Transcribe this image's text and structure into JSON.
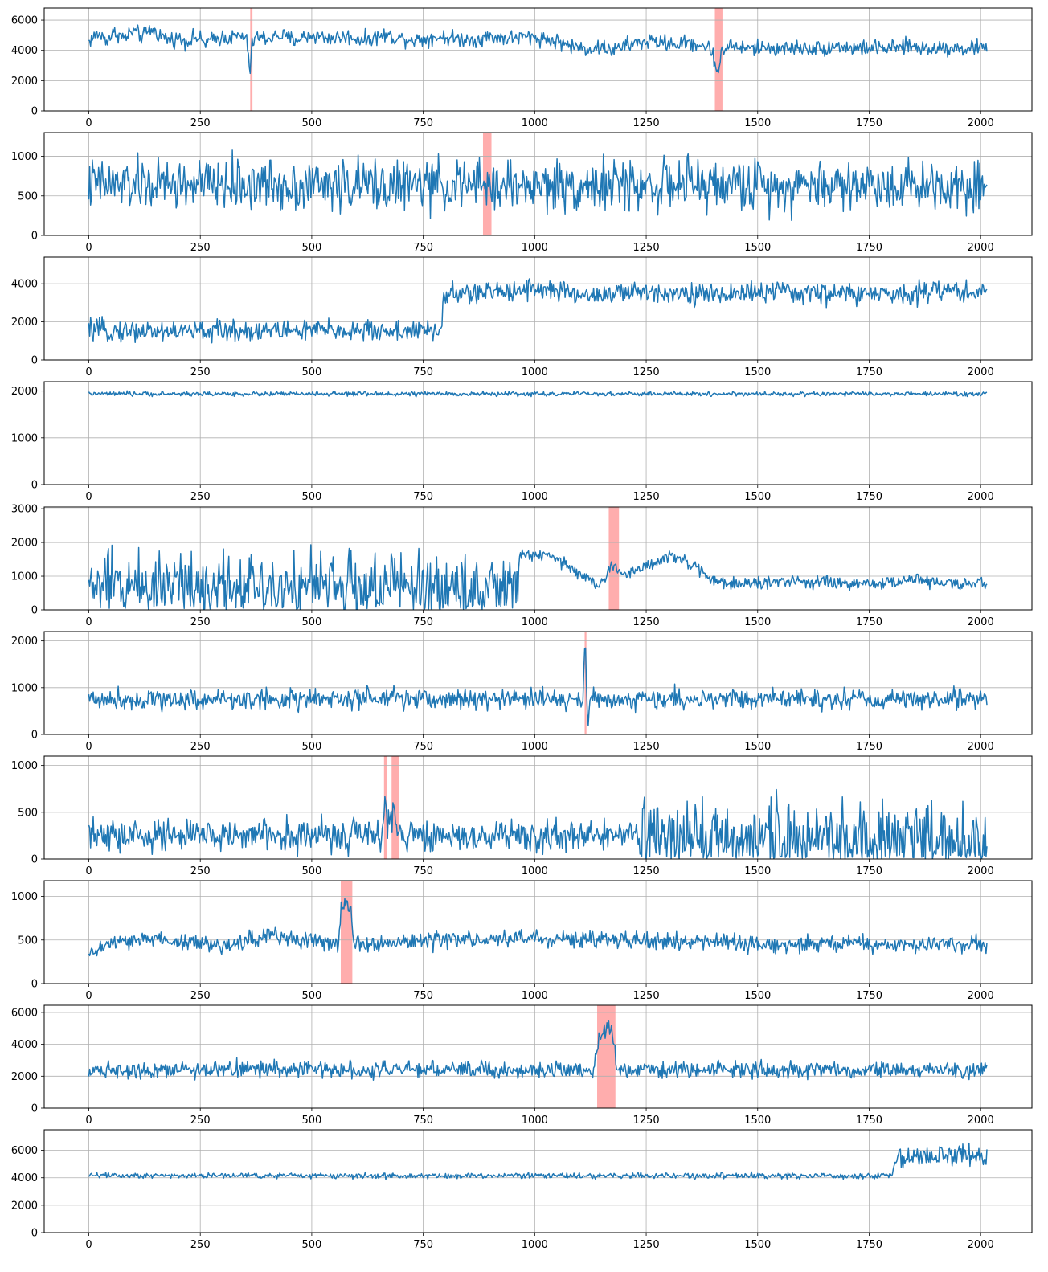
{
  "figure": {
    "series_color": "#1f77b4",
    "anomaly_color": "#ff9999",
    "grid_color": "#b0b0b0"
  },
  "chart_data": [
    {
      "type": "line",
      "xlim": [
        -100,
        2115
      ],
      "ylim": [
        0,
        6800
      ],
      "xticks": [
        0,
        250,
        500,
        750,
        1000,
        1250,
        1500,
        1750,
        2000
      ],
      "yticks": [
        0,
        2000,
        4000,
        6000
      ],
      "grid": true,
      "anomaly_spans": [
        [
          362,
          367
        ],
        [
          1404,
          1421
        ]
      ],
      "series": [
        {
          "x": [
            0,
            20,
            40,
            60,
            80,
            100,
            120,
            140,
            160,
            180,
            200,
            220,
            240,
            260,
            280,
            300,
            320,
            340,
            355,
            362,
            366,
            372,
            400,
            430,
            460,
            500,
            540,
            580,
            620,
            660,
            700,
            740,
            780,
            820,
            860,
            900,
            940,
            980,
            1020,
            1060,
            1080,
            1100,
            1120,
            1150,
            1180,
            1200,
            1230,
            1260,
            1290,
            1320,
            1350,
            1380,
            1400,
            1406,
            1412,
            1420,
            1440,
            1480,
            1520,
            1560,
            1600,
            1640,
            1680,
            1720,
            1760,
            1800,
            1840,
            1880,
            1920,
            1960,
            2000,
            2015
          ],
          "y": [
            4600,
            5100,
            4700,
            5200,
            4800,
            5300,
            4900,
            5400,
            5000,
            4700,
            4800,
            4600,
            4900,
            4500,
            4700,
            4900,
            4800,
            5000,
            4600,
            2500,
            4300,
            4900,
            4800,
            5000,
            4700,
            5000,
            4800,
            4900,
            4700,
            5000,
            4800,
            4700,
            4900,
            4800,
            4700,
            4900,
            4800,
            4900,
            4800,
            4500,
            4300,
            4200,
            4100,
            4200,
            4000,
            4300,
            4500,
            4600,
            4500,
            4400,
            4500,
            4300,
            3900,
            2700,
            2600,
            4100,
            4300,
            4100,
            4200,
            4100,
            4200,
            4100,
            4300,
            4100,
            4200,
            4100,
            4300,
            4100,
            4200,
            4100,
            4200,
            4100
          ],
          "noise": 320
        }
      ]
    },
    {
      "type": "line",
      "xlim": [
        -100,
        2115
      ],
      "ylim": [
        0,
        1300
      ],
      "xticks": [
        0,
        250,
        500,
        750,
        1000,
        1250,
        1500,
        1750,
        2000
      ],
      "yticks": [
        0,
        500,
        1000
      ],
      "grid": true,
      "anomaly_spans": [
        [
          884,
          903
        ]
      ],
      "series": [
        {
          "x": [
            0,
            500,
            1000,
            1500,
            2015
          ],
          "y": [
            640,
            640,
            630,
            640,
            640
          ],
          "noise": 200
        }
      ]
    },
    {
      "type": "line",
      "xlim": [
        -100,
        2115
      ],
      "ylim": [
        0,
        5400
      ],
      "xticks": [
        0,
        250,
        500,
        750,
        1000,
        1250,
        1500,
        1750,
        2000
      ],
      "yticks": [
        0,
        2000,
        4000
      ],
      "grid": true,
      "anomaly_spans": [],
      "series": [
        {
          "x": [
            0,
            200,
            400,
            600,
            790,
            795,
            880,
            1000,
            1100,
            1200,
            1300,
            1400,
            1500,
            1600,
            1700,
            1800,
            1900,
            2015
          ],
          "y": [
            1550,
            1500,
            1550,
            1550,
            1500,
            3400,
            3500,
            3800,
            3400,
            3500,
            3600,
            3400,
            3600,
            3500,
            3500,
            3400,
            3700,
            3500
          ],
          "noise": 350
        }
      ]
    },
    {
      "type": "line",
      "xlim": [
        -100,
        2115
      ],
      "ylim": [
        0,
        2200
      ],
      "xticks": [
        0,
        250,
        500,
        750,
        1000,
        1250,
        1500,
        1750,
        2000
      ],
      "yticks": [
        0,
        1000,
        2000
      ],
      "grid": true,
      "anomaly_spans": [],
      "series": [
        {
          "x": [
            0,
            1000,
            2015
          ],
          "y": [
            1940,
            1940,
            1940
          ],
          "noise": 30
        }
      ]
    },
    {
      "type": "line",
      "xlim": [
        -100,
        2115
      ],
      "ylim": [
        0,
        3050
      ],
      "xticks": [
        0,
        250,
        500,
        750,
        1000,
        1250,
        1500,
        1750,
        2000
      ],
      "yticks": [
        0,
        1000,
        2000,
        3000
      ],
      "grid": true,
      "anomaly_spans": [
        [
          1166,
          1189
        ]
      ],
      "series": [
        {
          "x": [
            0,
            200,
            400,
            600,
            800,
            960,
            966,
            1000,
            1050,
            1100,
            1140,
            1160,
            1170,
            1180,
            1200,
            1250,
            1300,
            1350,
            1400,
            1450,
            1500,
            1600,
            1700,
            1800,
            1850,
            1900,
            2015
          ],
          "y": [
            700,
            800,
            750,
            700,
            650,
            600,
            1600,
            1650,
            1500,
            1100,
            700,
            900,
            1400,
            1350,
            1000,
            1300,
            1600,
            1350,
            900,
            750,
            800,
            850,
            750,
            800,
            950,
            800,
            750
          ],
          "noise": 110,
          "noisy_until": 963,
          "noise_early": 650
        }
      ]
    },
    {
      "type": "line",
      "xlim": [
        -100,
        2115
      ],
      "ylim": [
        0,
        2200
      ],
      "xticks": [
        0,
        250,
        500,
        750,
        1000,
        1250,
        1500,
        1750,
        2000
      ],
      "yticks": [
        0,
        1000,
        2000
      ],
      "grid": true,
      "anomaly_spans": [
        [
          1112,
          1116
        ]
      ],
      "series": [
        {
          "x": [
            0,
            500,
            1000,
            1108,
            1113,
            1116,
            1119,
            1125,
            1500,
            2015
          ],
          "y": [
            760,
            750,
            760,
            750,
            2000,
            1200,
            150,
            750,
            760,
            750
          ],
          "noise": 140
        }
      ]
    },
    {
      "type": "line",
      "xlim": [
        -100,
        2115
      ],
      "ylim": [
        0,
        1100
      ],
      "xticks": [
        0,
        250,
        500,
        750,
        1000,
        1250,
        1500,
        1750,
        2000
      ],
      "yticks": [
        0,
        500,
        1000
      ],
      "grid": true,
      "anomaly_spans": [
        [
          662,
          668
        ],
        [
          679,
          696
        ]
      ],
      "series": [
        {
          "x": [
            0,
            400,
            660,
            665,
            670,
            685,
            690,
            700,
            1000,
            1235,
            1240,
            1500,
            1800,
            2015
          ],
          "y": [
            240,
            260,
            250,
            700,
            250,
            650,
            300,
            250,
            250,
            240,
            200,
            200,
            190,
            200
          ],
          "noise": 110,
          "noisy_from": 1240,
          "noise_late": 260
        }
      ]
    },
    {
      "type": "line",
      "xlim": [
        -100,
        2115
      ],
      "ylim": [
        0,
        1180
      ],
      "xticks": [
        0,
        250,
        500,
        750,
        1000,
        1250,
        1500,
        1750,
        2000
      ],
      "yticks": [
        0,
        500,
        1000
      ],
      "grid": true,
      "anomaly_spans": [
        [
          565,
          591
        ]
      ],
      "series": [
        {
          "x": [
            0,
            5,
            40,
            150,
            300,
            400,
            560,
            566,
            578,
            588,
            594,
            700,
            1000,
            1300,
            1500,
            1800,
            2015
          ],
          "y": [
            250,
            350,
            450,
            520,
            420,
            560,
            450,
            850,
            900,
            800,
            470,
            480,
            520,
            480,
            450,
            450,
            450
          ],
          "noise": 60
        }
      ]
    },
    {
      "type": "line",
      "xlim": [
        -100,
        2115
      ],
      "ylim": [
        0,
        6450
      ],
      "xticks": [
        0,
        250,
        500,
        750,
        1000,
        1250,
        1500,
        1750,
        2000
      ],
      "yticks": [
        0,
        2000,
        4000,
        6000
      ],
      "grid": true,
      "anomaly_spans": [
        [
          1140,
          1181
        ]
      ],
      "series": [
        {
          "x": [
            0,
            500,
            1000,
            1130,
            1145,
            1160,
            1175,
            1185,
            1500,
            2015
          ],
          "y": [
            2400,
            2450,
            2400,
            2400,
            4300,
            5000,
            4500,
            2400,
            2400,
            2400
          ],
          "noise": 320
        }
      ]
    },
    {
      "type": "line",
      "xlim": [
        -100,
        2115
      ],
      "ylim": [
        0,
        7500
      ],
      "xticks": [
        0,
        250,
        500,
        750,
        1000,
        1250,
        1500,
        1750,
        2000
      ],
      "yticks": [
        0,
        2000,
        4000,
        6000
      ],
      "grid": true,
      "anomaly_spans": [],
      "series": [
        {
          "x": [
            0,
            500,
            1000,
            1500,
            1800,
            1810,
            1900,
            1950,
            2015
          ],
          "y": [
            4200,
            4150,
            4150,
            4150,
            4150,
            5400,
            5600,
            5800,
            5300
          ],
          "noise": 130,
          "noisy_from": 1810,
          "noise_late": 500
        }
      ]
    }
  ]
}
